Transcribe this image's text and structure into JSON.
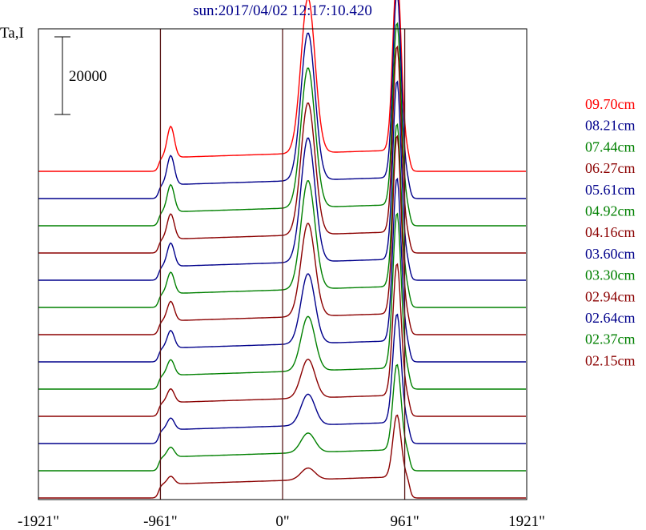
{
  "chart_data": {
    "type": "line",
    "title": "sun:2017/04/02 12:17:10.420",
    "ylabel": "Ta,I",
    "scale_bar_label": "20000",
    "scale_bar_value": 20000,
    "x_ticks": [
      {
        "value": -1921,
        "label": "-1921\""
      },
      {
        "value": -961,
        "label": "-961\""
      },
      {
        "value": 0,
        "label": "0\""
      },
      {
        "value": 961,
        "label": "961\""
      },
      {
        "value": 1921,
        "label": "1921\""
      }
    ],
    "xlim": [
      -1921,
      1921
    ],
    "vertical_markers": [
      -961,
      0,
      961
    ],
    "grid": false,
    "legend_position": "right",
    "series": [
      {
        "name": "09.70cm",
        "color": "#ff0000",
        "peaks": [
          8000,
          40000,
          46000
        ]
      },
      {
        "name": "08.21cm",
        "color": "#00008b",
        "peaks": [
          7500,
          38000,
          48000
        ]
      },
      {
        "name": "07.44cm",
        "color": "#008000",
        "peaks": [
          7000,
          36000,
          47000
        ]
      },
      {
        "name": "06.27cm",
        "color": "#8b0000",
        "peaks": [
          6500,
          34000,
          48000
        ]
      },
      {
        "name": "05.61cm",
        "color": "#00008b",
        "peaks": [
          6000,
          32000,
          46000
        ]
      },
      {
        "name": "04.92cm",
        "color": "#008000",
        "peaks": [
          5500,
          28000,
          42000
        ]
      },
      {
        "name": "04.16cm",
        "color": "#8b0000",
        "peaks": [
          5000,
          24000,
          46000
        ]
      },
      {
        "name": "03.60cm",
        "color": "#00008b",
        "peaks": [
          4500,
          18000,
          42000
        ]
      },
      {
        "name": "03.30cm",
        "color": "#008000",
        "peaks": [
          4000,
          14000,
          40000
        ]
      },
      {
        "name": "02.94cm",
        "color": "#8b0000",
        "peaks": [
          3500,
          10000,
          34000
        ]
      },
      {
        "name": "02.64cm",
        "color": "#00008b",
        "peaks": [
          3000,
          8000,
          28000
        ]
      },
      {
        "name": "02.37cm",
        "color": "#008000",
        "peaks": [
          2500,
          5000,
          22000
        ]
      },
      {
        "name": "02.15cm",
        "color": "#8b0000",
        "peaks": [
          2000,
          3000,
          16000
        ]
      }
    ]
  }
}
